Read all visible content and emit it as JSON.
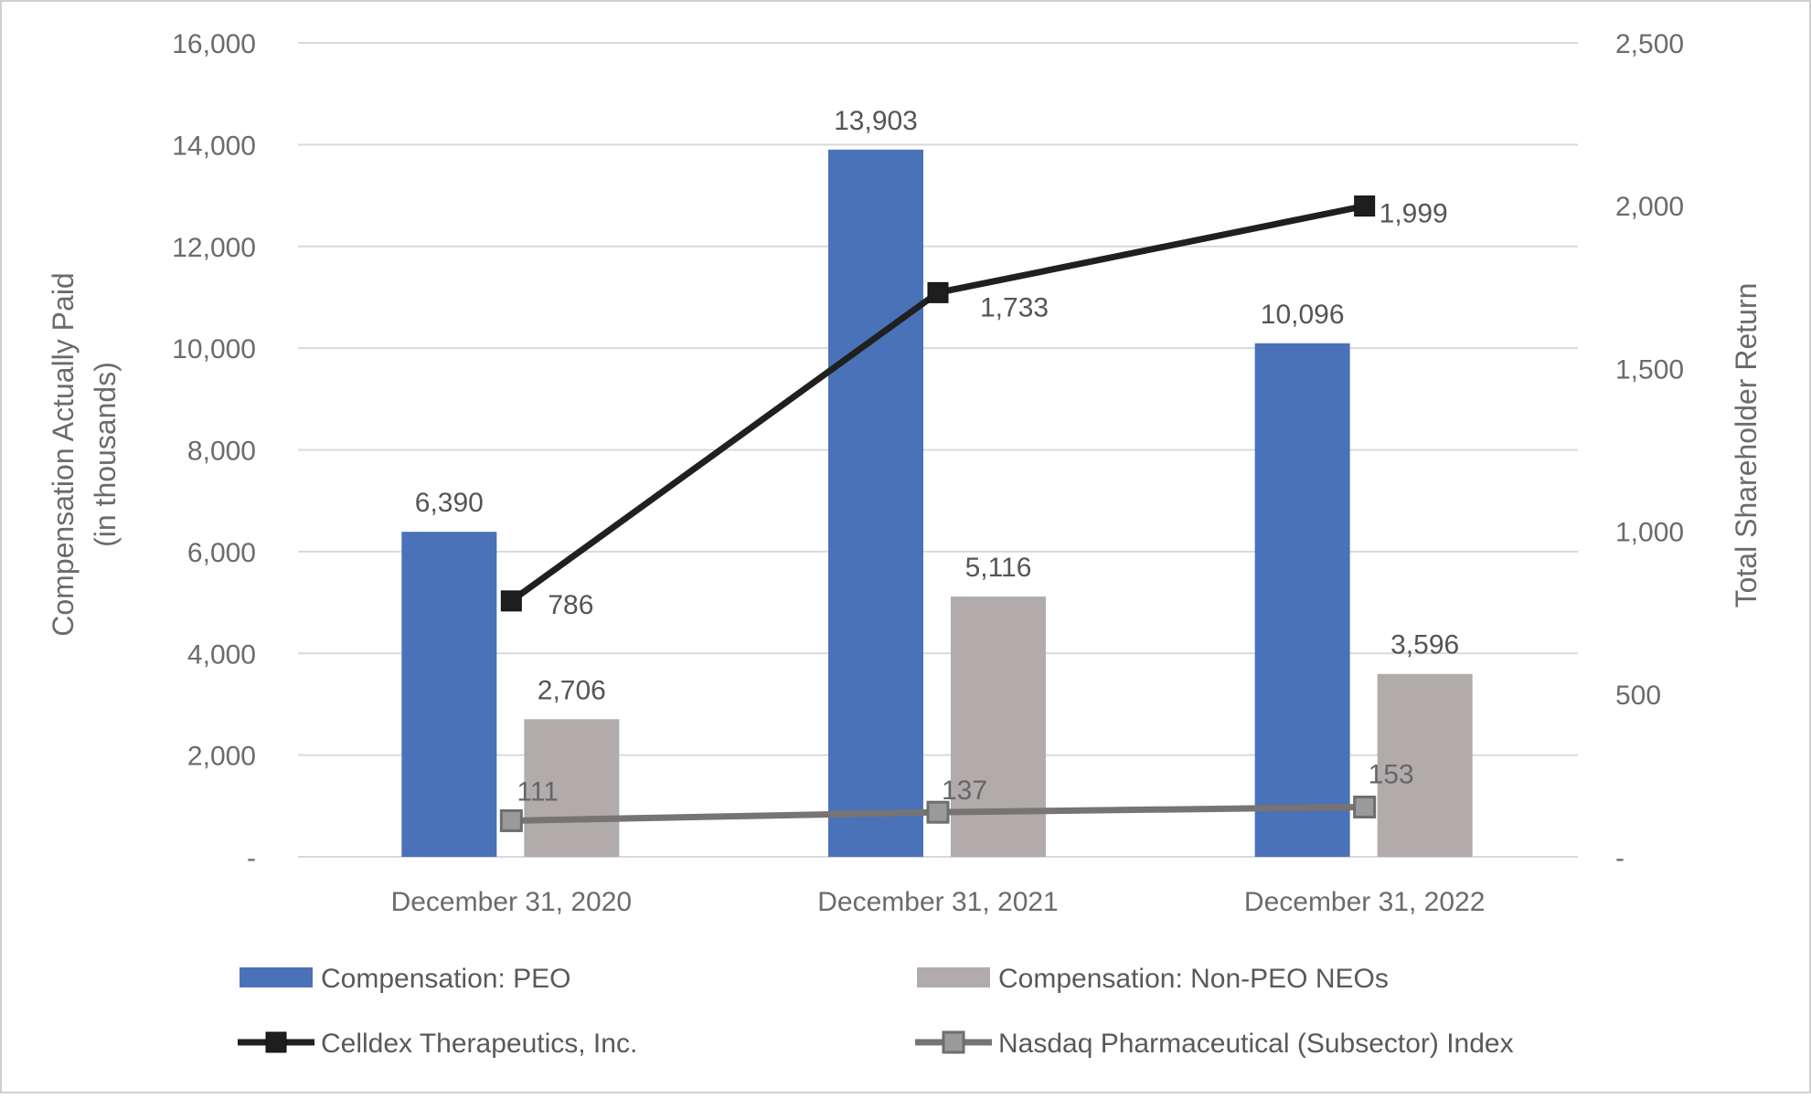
{
  "chart_data": {
    "type": "bar",
    "categories": [
      "December 31, 2020",
      "December 31, 2021",
      "December 31, 2022"
    ],
    "bar_series": [
      {
        "name": "Compensation: PEO",
        "values": [
          6390,
          13903,
          10096
        ],
        "labels": [
          "6,390",
          "13,903",
          "10,096"
        ],
        "color": "#4a72b8"
      },
      {
        "name": "Compensation: Non-PEO NEOs",
        "values": [
          2706,
          5116,
          3596
        ],
        "labels": [
          "2,706",
          "5,116",
          "3,596"
        ],
        "color": "#b1acab"
      }
    ],
    "line_series": [
      {
        "name": "Celldex Therapeutics, Inc.",
        "values": [
          786,
          1733,
          1999
        ],
        "labels": [
          "786",
          "1,733",
          "1,999"
        ],
        "color": "#202020",
        "marker_fill": "#1e1e1e"
      },
      {
        "name": "Nasdaq  Pharmaceutical (Subsector) Index",
        "values": [
          111,
          137,
          153
        ],
        "labels": [
          "111",
          "137",
          "153"
        ],
        "color": "#787474",
        "marker_fill": "#9a9a9a"
      }
    ],
    "y_left": {
      "label_line1": "Compensation Actually Paid",
      "label_line2": "(in thousands)",
      "ylim": [
        0,
        16000
      ],
      "ticks": [
        0,
        2000,
        4000,
        6000,
        8000,
        10000,
        12000,
        14000,
        16000
      ],
      "tick_labels": [
        "-",
        "2,000",
        "4,000",
        "6,000",
        "8,000",
        "10,000",
        "12,000",
        "14,000",
        "16,000"
      ]
    },
    "y_right": {
      "label": "Total Shareholder Return",
      "ylim": [
        0,
        2500
      ],
      "ticks": [
        0,
        500,
        1000,
        1500,
        2000,
        2500
      ],
      "tick_labels": [
        "-",
        "500",
        "1,000",
        "1,500",
        "2,000",
        "2,500"
      ]
    },
    "grid": true,
    "legend_position": "bottom",
    "colors": {
      "axis_text": "#6b6b6b",
      "grid": "#d9d9d9",
      "border": "#d0d0d0"
    }
  }
}
